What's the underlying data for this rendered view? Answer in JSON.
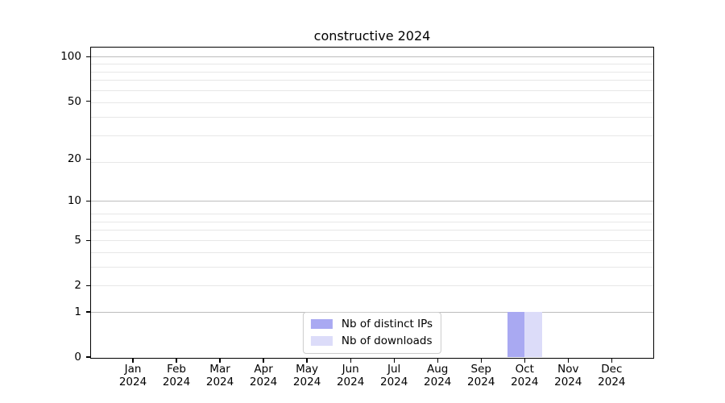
{
  "chart_data": {
    "type": "bar",
    "title": "constructive 2024",
    "categories": [
      "Jan\n2024",
      "Feb\n2024",
      "Mar\n2024",
      "Apr\n2024",
      "May\n2024",
      "Jun\n2024",
      "Jul\n2024",
      "Aug\n2024",
      "Sep\n2024",
      "Oct\n2024",
      "Nov\n2024",
      "Dec\n2024"
    ],
    "series": [
      {
        "name": "Nb of distinct IPs",
        "color": "#a9a9f2",
        "values": [
          0,
          0,
          0,
          0,
          0,
          0,
          0,
          0,
          0,
          1,
          0,
          0
        ]
      },
      {
        "name": "Nb of downloads",
        "color": "#dcdcf9",
        "values": [
          0,
          0,
          0,
          0,
          0,
          0,
          0,
          0,
          0,
          1,
          0,
          0
        ]
      }
    ],
    "yscale": "log1p",
    "yticks": [
      0,
      1,
      2,
      5,
      10,
      20,
      50,
      100
    ],
    "ylim": [
      0,
      115.3
    ],
    "grid": {
      "major_values": [
        1,
        10,
        100
      ],
      "minor_values": [
        2,
        3,
        4,
        5,
        6,
        7,
        8,
        19,
        29,
        39,
        49,
        59,
        69,
        79,
        89
      ],
      "major_color": "#bdbdbd",
      "minor_color": "#e7e7e7"
    },
    "legend": {
      "position": "lower center"
    },
    "xlabel": "",
    "ylabel": ""
  }
}
